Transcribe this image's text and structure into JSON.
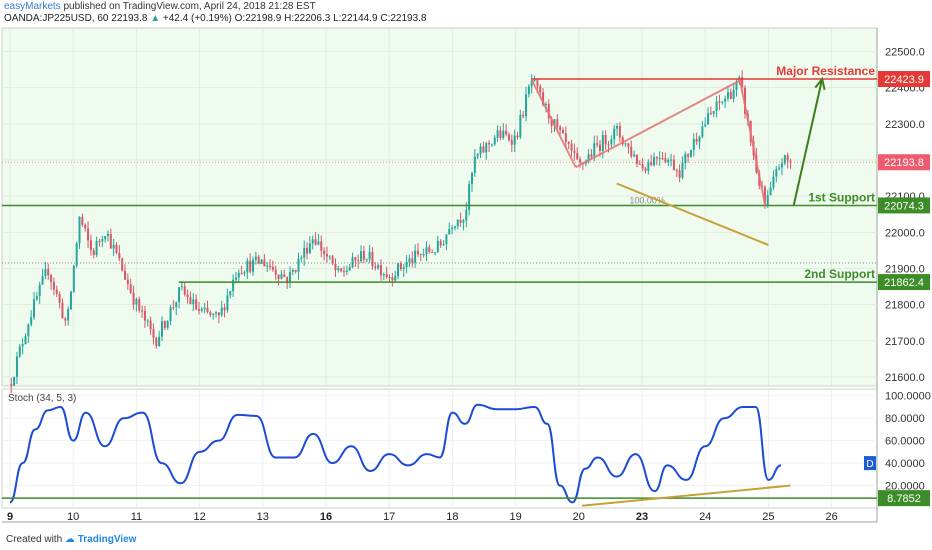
{
  "header": {
    "publisher": "easyMarkets",
    "published_text": "published on TradingView.com, April 24, 2018 21:28 EST",
    "symbol": "OANDA:JP225USD, 60",
    "last": "22193.8",
    "change": "+42.4 (+0.19%)",
    "open_label": "O:",
    "open": "22198.9",
    "high_label": "H:",
    "high": "22206.3",
    "low_label": "L:",
    "low": "22144.9",
    "close_label": "C:",
    "close": "22193.8"
  },
  "footer": {
    "created_with": "Created with",
    "brand": "TradingView"
  },
  "colors": {
    "price_bg": "#effbee",
    "osc_bg": "#ffffff",
    "up": "#26a69a",
    "down": "#d8566a",
    "resistance": "#e53935",
    "support": "#3c8c27",
    "trendline": "#c8a03a",
    "arrow": "#3a7d1c",
    "pattern": "#e57373",
    "stoch": "#1c4bd6",
    "current_price_line": "#ef9a9a"
  },
  "chart_data": [
    {
      "type": "candlestick",
      "title": "OANDA:JP225USD, 60",
      "timeframe": "60",
      "x_ticks": [
        "9",
        "10",
        "11",
        "12",
        "13",
        "16",
        "17",
        "18",
        "19",
        "20",
        "23",
        "24",
        "25",
        "26"
      ],
      "bold_x_ticks": [
        "9",
        "16",
        "23"
      ],
      "y_ticks": [
        "21600.0",
        "21700.0",
        "21800.0",
        "21900.0",
        "22000.0",
        "22100.0",
        "22200.0",
        "22300.0",
        "22400.0",
        "22500.0"
      ],
      "ylim": [
        21575,
        22565
      ],
      "last_price": 22193.8,
      "last_price_label": "22193.8",
      "dotted_level": 21915,
      "price_path": [
        {
          "d": 0,
          "p": 21580
        },
        {
          "d": 0.3,
          "p": 21760
        },
        {
          "d": 0.6,
          "p": 21900
        },
        {
          "d": 0.9,
          "p": 21740
        },
        {
          "d": 1.1,
          "p": 22040
        },
        {
          "d": 1.3,
          "p": 21940
        },
        {
          "d": 1.5,
          "p": 22010
        },
        {
          "d": 1.7,
          "p": 21930
        },
        {
          "d": 2.0,
          "p": 21800
        },
        {
          "d": 2.3,
          "p": 21700
        },
        {
          "d": 2.7,
          "p": 21840
        },
        {
          "d": 3.0,
          "p": 21780
        },
        {
          "d": 3.3,
          "p": 21760
        },
        {
          "d": 3.6,
          "p": 21900
        },
        {
          "d": 4.0,
          "p": 21920
        },
        {
          "d": 4.4,
          "p": 21870
        },
        {
          "d": 4.8,
          "p": 21990
        },
        {
          "d": 5.2,
          "p": 21880
        },
        {
          "d": 5.6,
          "p": 21940
        },
        {
          "d": 6.0,
          "p": 21880
        },
        {
          "d": 6.4,
          "p": 21930
        },
        {
          "d": 6.8,
          "p": 21960
        },
        {
          "d": 7.0,
          "p": 22030
        },
        {
          "d": 7.2,
          "p": 22050
        },
        {
          "d": 7.35,
          "p": 22200
        },
        {
          "d": 7.7,
          "p": 22270
        },
        {
          "d": 8.0,
          "p": 22260
        },
        {
          "d": 8.25,
          "p": 22420
        },
        {
          "d": 8.6,
          "p": 22300
        },
        {
          "d": 9.0,
          "p": 22180
        },
        {
          "d": 9.3,
          "p": 22240
        },
        {
          "d": 9.6,
          "p": 22280
        },
        {
          "d": 10.0,
          "p": 22180
        },
        {
          "d": 10.3,
          "p": 22220
        },
        {
          "d": 10.6,
          "p": 22170
        },
        {
          "d": 10.9,
          "p": 22280
        },
        {
          "d": 11.2,
          "p": 22350
        },
        {
          "d": 11.55,
          "p": 22415
        },
        {
          "d": 11.8,
          "p": 22180
        },
        {
          "d": 11.95,
          "p": 22070
        },
        {
          "d": 12.2,
          "p": 22200
        },
        {
          "d": 12.35,
          "p": 22194
        }
      ],
      "levels": [
        {
          "name": "Major Resistance",
          "value": 22423.9,
          "value_label": "22423.9",
          "kind": "resistance"
        },
        {
          "name": "1st Support",
          "value": 22074.3,
          "value_label": "22074.3",
          "kind": "support"
        },
        {
          "name": "2nd Support",
          "value": 21862.4,
          "value_label": "21862.4",
          "kind": "support"
        }
      ],
      "fib_label": "100.00%",
      "trendline": {
        "start": {
          "d": 9.6,
          "p": 22135
        },
        "end": {
          "d": 12.0,
          "p": 21965
        }
      },
      "arrow": {
        "start": {
          "d": 12.4,
          "p": 22074.3
        },
        "end": {
          "d": 12.85,
          "p": 22423.9
        }
      },
      "harmonic_pattern": [
        {
          "d": 8.25,
          "p": 22423.9
        },
        {
          "d": 8.95,
          "p": 22180
        },
        {
          "d": 11.55,
          "p": 22420
        },
        {
          "d": 11.95,
          "p": 22074.3
        }
      ]
    },
    {
      "type": "line",
      "title": "Stoch (34, 5, 3)",
      "series": [
        {
          "name": "Stoch (34, 5, 3)",
          "x": [
            0,
            0.2,
            0.4,
            0.6,
            0.8,
            1.0,
            1.2,
            1.5,
            1.8,
            2.1,
            2.4,
            2.7,
            3.0,
            3.3,
            3.6,
            3.9,
            4.2,
            4.5,
            4.8,
            5.1,
            5.4,
            5.7,
            6.0,
            6.3,
            6.6,
            6.8,
            7.0,
            7.2,
            7.4,
            7.7,
            8.0,
            8.3,
            8.5,
            8.7,
            8.9,
            9.1,
            9.3,
            9.6,
            9.9,
            10.2,
            10.4,
            10.7,
            11.0,
            11.3,
            11.6,
            11.8,
            12.0,
            12.2
          ],
          "values": [
            5,
            40,
            70,
            87,
            90,
            60,
            85,
            55,
            80,
            85,
            40,
            22,
            50,
            60,
            83,
            82,
            45,
            45,
            66,
            40,
            55,
            33,
            48,
            38,
            48,
            45,
            85,
            75,
            92,
            88,
            88,
            90,
            75,
            20,
            5,
            35,
            45,
            28,
            48,
            15,
            38,
            25,
            55,
            80,
            90,
            90,
            25,
            38
          ]
        }
      ],
      "y_ticks": [
        "100.0000",
        "80.0000",
        "60.0000",
        "40.0000",
        "20.0000"
      ],
      "ylim": [
        0,
        106
      ],
      "level": {
        "value": 8.7852,
        "value_label": "8.7852"
      },
      "trendline": {
        "start": {
          "d": 9.05,
          "v": 2
        },
        "end": {
          "d": 12.35,
          "v": 20
        }
      },
      "badge": "D"
    }
  ]
}
